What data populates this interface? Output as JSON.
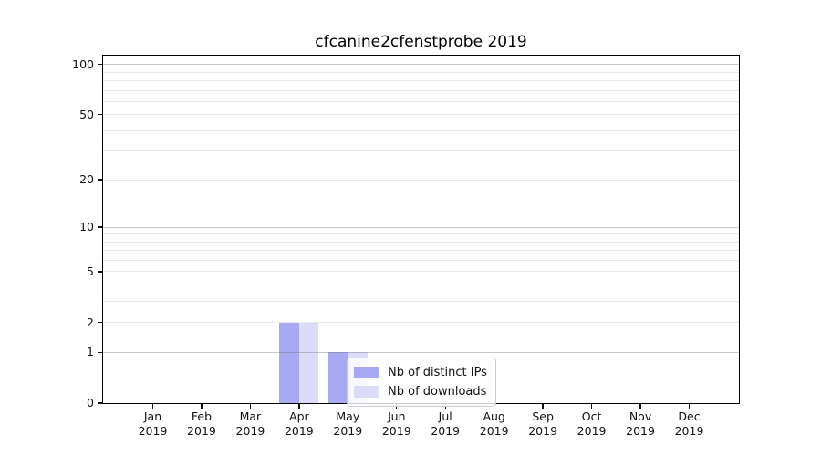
{
  "chart_data": {
    "type": "bar",
    "title": "cfcanine2cfenstprobe 2019",
    "categories": [
      "Jan 2019",
      "Feb 2019",
      "Mar 2019",
      "Apr 2019",
      "May 2019",
      "Jun 2019",
      "Jul 2019",
      "Aug 2019",
      "Sep 2019",
      "Oct 2019",
      "Nov 2019",
      "Dec 2019"
    ],
    "series": [
      {
        "name": "Nb of distinct IPs",
        "color": "#a8a8f3",
        "values": [
          0,
          0,
          0,
          2,
          1,
          0,
          0,
          0,
          0,
          0,
          0,
          0
        ]
      },
      {
        "name": "Nb of downloads",
        "color": "#dcdcf9",
        "values": [
          0,
          0,
          0,
          2,
          1,
          0,
          0,
          0,
          0,
          0,
          0,
          0
        ]
      }
    ],
    "xlabel": "",
    "ylabel": "",
    "yscale": "log(x+1)",
    "yticks": [
      0,
      1,
      2,
      5,
      10,
      20,
      50,
      100
    ],
    "ylim": [
      0,
      113
    ],
    "grid": {
      "major_values": [
        1,
        10,
        100
      ],
      "minor_values": [
        2,
        3,
        4,
        5,
        6,
        7,
        8,
        9,
        20,
        30,
        40,
        50,
        60,
        70,
        80,
        90
      ]
    },
    "legend_position": "lower center"
  },
  "colors": {
    "grid_major": "rgba(110,110,110,0.38)",
    "grid_minor": "#e9e9e9",
    "spine": "#000000",
    "text": "#111111"
  }
}
